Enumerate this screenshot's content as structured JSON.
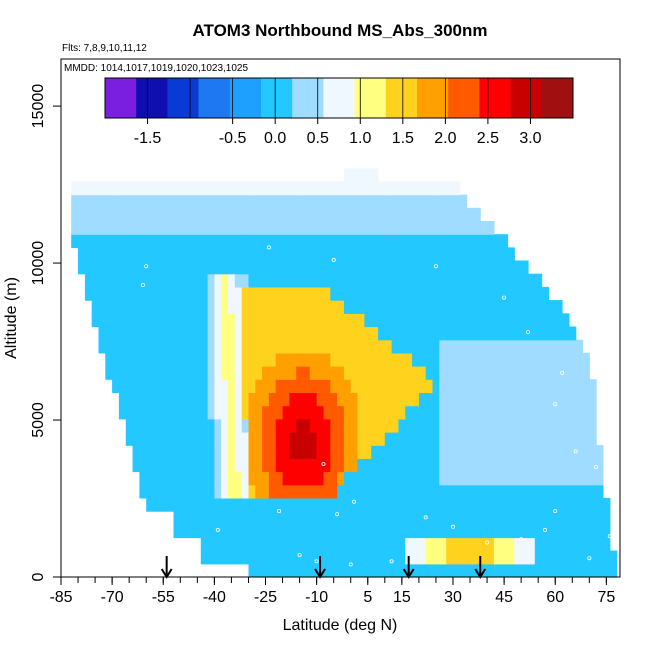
{
  "chart_data": {
    "type": "heatmap",
    "title": "ATOM3 Northbound MS_Abs_300nm",
    "flights_note": "Flts: 7,8,9,10,11,12",
    "dates_note": "MMDD: 1014,1017,1019,1020,1023,1025",
    "xlabel": "Latitude (deg N)",
    "ylabel": "Altitude (m)",
    "xlim": [
      -85,
      79
    ],
    "ylim": [
      0,
      16500
    ],
    "x_ticks": [
      -85,
      -70,
      -55,
      -40,
      -25,
      -10,
      5,
      15,
      30,
      45,
      60,
      75
    ],
    "x_tick_labels": [
      "-85",
      "-70",
      "-55",
      "-40",
      "-25",
      "-10",
      "5",
      "15",
      "30",
      "45",
      "60",
      "75"
    ],
    "y_ticks": [
      0,
      5000,
      10000,
      15000
    ],
    "y_tick_labels": [
      "0",
      "5000",
      "10000",
      "15000"
    ],
    "colorbar": {
      "range": [
        -2.0,
        3.5
      ],
      "boundaries": [
        -2.0,
        -1.5,
        -1.0,
        -0.5,
        0.0,
        0.5,
        1.0,
        1.5,
        2.0,
        2.5,
        3.0,
        3.5
      ],
      "tick_values": [
        -1.5,
        -0.5,
        0.0,
        0.5,
        1.0,
        1.5,
        2.0,
        2.5,
        3.0
      ],
      "tick_labels": [
        "-1.5",
        "-0.5",
        "0.0",
        "0.5",
        "1.0",
        "1.5",
        "2.0",
        "2.5",
        "3.0"
      ],
      "colors": [
        "#7a1fe0",
        "#0f0fb0",
        "#0a3ad6",
        "#1e78f2",
        "#1ea0ff",
        "#22c8ff",
        "#a0dcff",
        "#f0f8ff",
        "#ffff80",
        "#ffd21e",
        "#ffa000",
        "#ff5a00",
        "#ff0000",
        "#c80000",
        "#a01010"
      ]
    },
    "profile_markers_lat": [
      -54,
      -9,
      17,
      38
    ],
    "sample_points": [
      [
        -82,
        9500
      ],
      [
        -80,
        8800
      ],
      [
        -60,
        9900
      ],
      [
        -61,
        9300
      ],
      [
        -24,
        10500
      ],
      [
        -5,
        10100
      ],
      [
        25,
        9900
      ],
      [
        45,
        8900
      ],
      [
        52,
        7800
      ],
      [
        62,
        6500
      ],
      [
        60,
        5500
      ],
      [
        66,
        4000
      ],
      [
        72,
        3500
      ],
      [
        60,
        2100
      ],
      [
        57,
        1500
      ],
      [
        -39,
        1500
      ],
      [
        -21,
        2100
      ],
      [
        -4,
        2000
      ],
      [
        1,
        2400
      ],
      [
        -8,
        3600
      ],
      [
        -15,
        700
      ],
      [
        -10,
        500
      ],
      [
        0,
        400
      ],
      [
        22,
        1900
      ],
      [
        40,
        1100
      ],
      [
        70,
        600
      ],
      [
        76,
        1300
      ],
      [
        50,
        1200
      ],
      [
        12,
        500
      ],
      [
        30,
        1600
      ]
    ]
  }
}
